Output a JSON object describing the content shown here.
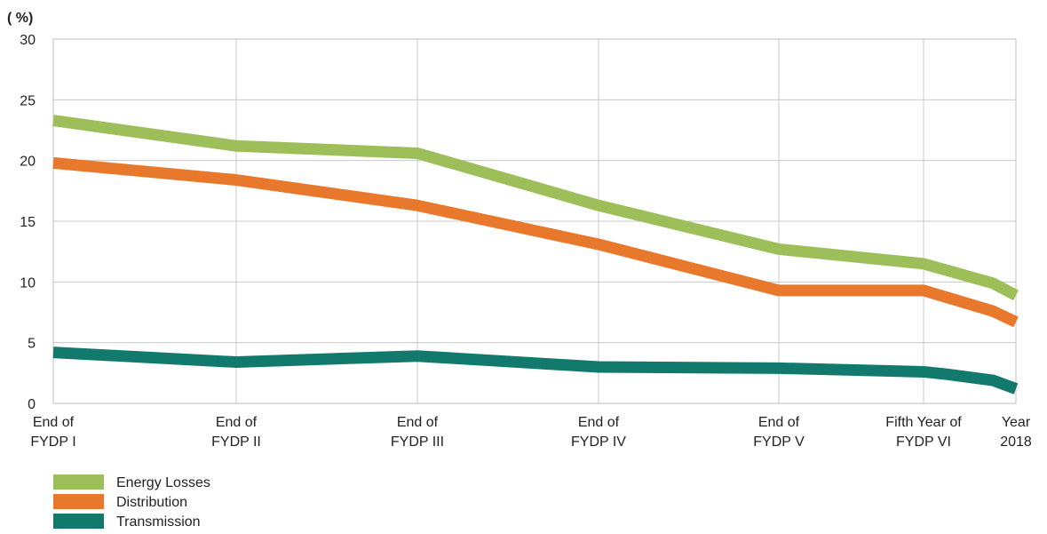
{
  "chart_data": {
    "type": "line",
    "ylabel": "( %)",
    "ylim": [
      0,
      30
    ],
    "yticks": [
      0,
      5,
      10,
      15,
      20,
      25,
      30
    ],
    "grid": true,
    "legend_position": "bottom-left",
    "categories": [
      [
        "End of",
        "FYDP I"
      ],
      [
        "End of",
        "FYDP II"
      ],
      [
        "End of",
        "FYDP III"
      ],
      [
        "End of",
        "FYDP IV"
      ],
      [
        "End of",
        "FYDP V"
      ],
      [
        "Fifth Year of",
        "FYDP VI"
      ],
      [
        "Year",
        "2018"
      ]
    ],
    "series": [
      {
        "name": "Energy Losses",
        "color": "#9cbf5a",
        "x": [
          0,
          1,
          2,
          3,
          4,
          5,
          5.75,
          6
        ],
        "values": [
          23.3,
          21.2,
          20.6,
          16.3,
          12.7,
          11.5,
          9.9,
          8.9
        ]
      },
      {
        "name": "Distribution",
        "color": "#e8782b",
        "x": [
          0,
          1,
          2,
          3,
          4,
          5,
          5.75,
          6
        ],
        "values": [
          19.8,
          18.4,
          16.3,
          13.1,
          9.3,
          9.3,
          7.6,
          6.7
        ]
      },
      {
        "name": "Transmission",
        "color": "#117a6d",
        "x": [
          0,
          1,
          2,
          3,
          4,
          5,
          5.25,
          5.75,
          6
        ],
        "values": [
          4.2,
          3.4,
          3.9,
          3.0,
          2.9,
          2.6,
          2.4,
          1.9,
          1.2
        ]
      }
    ]
  }
}
